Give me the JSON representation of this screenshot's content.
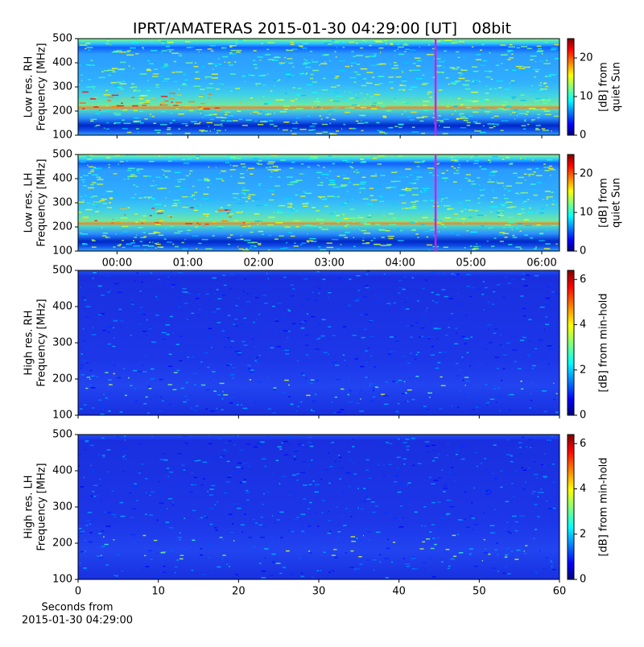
{
  "figure_title": "IPRT/AMATERAS 2015-01-30 04:29:00 [UT]   08bit",
  "chart_data": [
    {
      "type": "heatmap",
      "style": "low-res",
      "ylabel": [
        "Low res. RH",
        "Frequency [MHz]"
      ],
      "ylim": [
        100,
        500
      ],
      "yticks": [
        100,
        200,
        300,
        400,
        500
      ],
      "xlim": [
        -0.55,
        6.25
      ],
      "xticks": [
        0,
        1,
        2,
        3,
        4,
        5,
        6
      ],
      "show_xticklabels": false,
      "marker_x": 4.5,
      "marker_color": "#d020e0",
      "colorbar": {
        "label": [
          "[dB] from",
          "quiet Sun"
        ],
        "lim": [
          0,
          25
        ],
        "ticks": [
          0,
          10,
          20
        ]
      },
      "colormap": "jet"
    },
    {
      "type": "heatmap",
      "style": "low-res",
      "ylabel": [
        "Low res. LH",
        "Frequency [MHz]"
      ],
      "ylim": [
        100,
        500
      ],
      "yticks": [
        100,
        200,
        300,
        400,
        500
      ],
      "xlim": [
        -0.55,
        6.25
      ],
      "xticks": [
        {
          "value": 0,
          "label": "00:00"
        },
        {
          "value": 1,
          "label": "01:00"
        },
        {
          "value": 2,
          "label": "02:00"
        },
        {
          "value": 3,
          "label": "03:00"
        },
        {
          "value": 4,
          "label": "04:00"
        },
        {
          "value": 5,
          "label": "05:00"
        },
        {
          "value": 6,
          "label": "06:00"
        }
      ],
      "show_xticklabels": true,
      "marker_x": 4.5,
      "marker_color": "#d020e0",
      "colorbar": {
        "label": [
          "[dB] from",
          "quiet Sun"
        ],
        "lim": [
          0,
          25
        ],
        "ticks": [
          0,
          10,
          20
        ]
      },
      "colormap": "jet"
    },
    {
      "type": "heatmap",
      "style": "high-res",
      "ylabel": [
        "High res. RH",
        "Frequency [MHz]"
      ],
      "ylim": [
        100,
        500
      ],
      "yticks": [
        100,
        200,
        300,
        400,
        500
      ],
      "xlim": [
        0,
        60
      ],
      "xticks": [
        0,
        10,
        20,
        30,
        40,
        50,
        60
      ],
      "show_xticklabels": false,
      "colorbar": {
        "label": [
          "[dB] from min-hold"
        ],
        "lim": [
          0,
          6.4
        ],
        "ticks": [
          0,
          2,
          4,
          6
        ]
      },
      "colormap": "jet"
    },
    {
      "type": "heatmap",
      "style": "high-res",
      "ylabel": [
        "High res. LH",
        "Frequency [MHz]"
      ],
      "ylim": [
        100,
        500
      ],
      "yticks": [
        100,
        200,
        300,
        400,
        500
      ],
      "xlim": [
        0,
        60
      ],
      "xticks": [
        0,
        10,
        20,
        30,
        40,
        50,
        60
      ],
      "show_xticklabels": true,
      "xlabel": [
        "Seconds from",
        "2015-01-30 04:29:00"
      ],
      "colorbar": {
        "label": [
          "[dB] from min-hold"
        ],
        "lim": [
          0,
          6.4
        ],
        "ticks": [
          0,
          2,
          4,
          6
        ]
      },
      "colormap": "jet"
    }
  ]
}
